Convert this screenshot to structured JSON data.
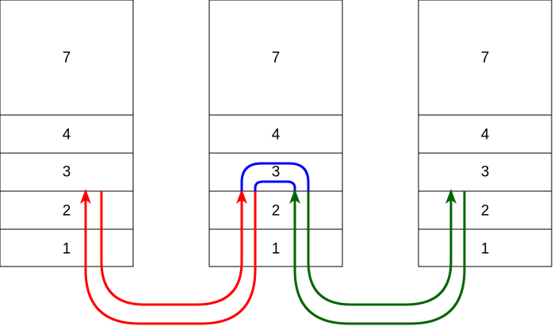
{
  "stacks": [
    {
      "name": "left",
      "cells": [
        {
          "label": "7"
        },
        {
          "label": "4"
        },
        {
          "label": "3"
        },
        {
          "label": "2"
        },
        {
          "label": "1"
        }
      ]
    },
    {
      "name": "middle",
      "cells": [
        {
          "label": "7"
        },
        {
          "label": "4"
        },
        {
          "label": "3"
        },
        {
          "label": "2"
        },
        {
          "label": "1"
        }
      ]
    },
    {
      "name": "right",
      "cells": [
        {
          "label": "7"
        },
        {
          "label": "4"
        },
        {
          "label": "3"
        },
        {
          "label": "2"
        },
        {
          "label": "1"
        }
      ]
    }
  ],
  "arrows": [
    {
      "name": "red-arrow-outer",
      "color": "#ff0000",
      "from": "left",
      "to": "middle"
    },
    {
      "name": "red-arrow-inner",
      "color": "#ff0000",
      "from": "left",
      "to": "middle"
    },
    {
      "name": "blue-arc-outer",
      "color": "#0000ff",
      "from": "middle",
      "to": "middle"
    },
    {
      "name": "blue-arc-inner",
      "color": "#0000ff",
      "from": "middle",
      "to": "middle"
    },
    {
      "name": "green-arrow-outer",
      "color": "#006600",
      "from": "middle",
      "to": "right"
    },
    {
      "name": "green-arrow-inner",
      "color": "#006600",
      "from": "middle",
      "to": "right"
    }
  ],
  "colors": {
    "red": "#ff0000",
    "blue": "#0000ff",
    "green": "#006600",
    "border": "#000000"
  }
}
